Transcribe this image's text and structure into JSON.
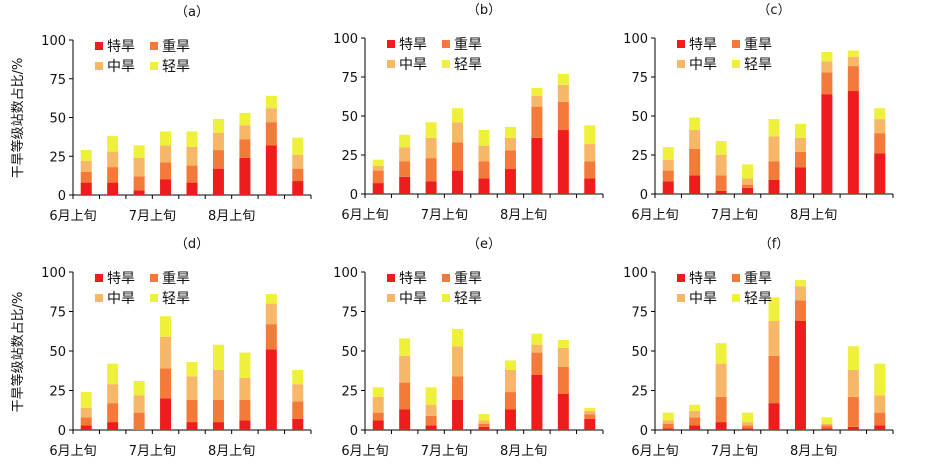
{
  "figure": {
    "ylabel": "干旱等级站数占比/%",
    "series_colors": {
      "特旱": "#ee1c1c",
      "重旱": "#f47a3a",
      "中旱": "#f7b768",
      "轻旱": "#eef03a"
    }
  },
  "chart_data": [
    {
      "panel_label": "（a）",
      "type": "bar",
      "stacked": true,
      "ylim": [
        0,
        100
      ],
      "yticks": [
        0,
        25,
        50,
        75,
        100
      ],
      "xticks": [
        "6月上旬",
        "7月上旬",
        "8月上旬"
      ],
      "categories": [
        "1",
        "2",
        "3",
        "4",
        "5",
        "6",
        "7",
        "8",
        "9"
      ],
      "series": [
        {
          "name": "特旱",
          "values": [
            8,
            8,
            3,
            10,
            8,
            17,
            24,
            32,
            9
          ]
        },
        {
          "name": "重旱",
          "values": [
            7,
            10,
            9,
            11,
            11,
            12,
            12,
            15,
            8
          ]
        },
        {
          "name": "中旱",
          "values": [
            7,
            10,
            12,
            11,
            12,
            11,
            9,
            9,
            9
          ]
        },
        {
          "name": "轻旱",
          "values": [
            7,
            10,
            8,
            9,
            10,
            9,
            8,
            8,
            11
          ]
        }
      ]
    },
    {
      "panel_label": "（b）",
      "type": "bar",
      "stacked": true,
      "ylim": [
        0,
        100
      ],
      "yticks": [
        0,
        25,
        50,
        75,
        100
      ],
      "xticks": [
        "6月上旬",
        "7月上旬",
        "8月上旬"
      ],
      "categories": [
        "1",
        "2",
        "3",
        "4",
        "5",
        "6",
        "7",
        "8",
        "9"
      ],
      "series": [
        {
          "name": "特旱",
          "values": [
            7,
            11,
            8,
            15,
            10,
            16,
            36,
            41,
            10
          ]
        },
        {
          "name": "重旱",
          "values": [
            8,
            10,
            15,
            18,
            11,
            12,
            20,
            18,
            11
          ]
        },
        {
          "name": "中旱",
          "values": [
            3,
            9,
            13,
            13,
            10,
            8,
            7,
            11,
            11
          ]
        },
        {
          "name": "轻旱",
          "values": [
            4,
            8,
            10,
            9,
            10,
            7,
            5,
            7,
            12
          ]
        }
      ]
    },
    {
      "panel_label": "（c）",
      "type": "bar",
      "stacked": true,
      "ylim": [
        0,
        100
      ],
      "yticks": [
        0,
        25,
        50,
        75,
        100
      ],
      "xticks": [
        "6月上旬",
        "7月上旬",
        "8月上旬"
      ],
      "categories": [
        "1",
        "2",
        "3",
        "4",
        "5",
        "6",
        "7",
        "8",
        "9"
      ],
      "series": [
        {
          "name": "特旱",
          "values": [
            8,
            12,
            2,
            4,
            9,
            17,
            64,
            66,
            26
          ]
        },
        {
          "name": "重旱",
          "values": [
            7,
            17,
            10,
            2,
            12,
            10,
            14,
            16,
            13
          ]
        },
        {
          "name": "中旱",
          "values": [
            7,
            12,
            13,
            4,
            16,
            9,
            7,
            6,
            9
          ]
        },
        {
          "name": "轻旱",
          "values": [
            8,
            8,
            9,
            9,
            11,
            9,
            6,
            4,
            7
          ]
        }
      ]
    },
    {
      "panel_label": "（d）",
      "type": "bar",
      "stacked": true,
      "ylim": [
        0,
        100
      ],
      "yticks": [
        0,
        25,
        50,
        75,
        100
      ],
      "xticks": [
        "6月上旬",
        "7月上旬",
        "8月上旬"
      ],
      "categories": [
        "1",
        "2",
        "3",
        "4",
        "5",
        "6",
        "7",
        "8",
        "9"
      ],
      "series": [
        {
          "name": "特旱",
          "values": [
            3,
            5,
            0,
            20,
            5,
            5,
            6,
            51,
            7
          ]
        },
        {
          "name": "重旱",
          "values": [
            5,
            12,
            11,
            19,
            14,
            14,
            13,
            16,
            11
          ]
        },
        {
          "name": "中旱",
          "values": [
            6,
            12,
            11,
            20,
            15,
            19,
            14,
            13,
            11
          ]
        },
        {
          "name": "轻旱",
          "values": [
            10,
            13,
            9,
            13,
            9,
            16,
            16,
            6,
            9
          ]
        }
      ]
    },
    {
      "panel_label": "（e）",
      "type": "bar",
      "stacked": true,
      "ylim": [
        0,
        100
      ],
      "yticks": [
        0,
        25,
        50,
        75,
        100
      ],
      "xticks": [
        "6月上旬",
        "7月上旬",
        "8月上旬"
      ],
      "categories": [
        "1",
        "2",
        "3",
        "4",
        "5",
        "6",
        "7",
        "8",
        "9"
      ],
      "series": [
        {
          "name": "特旱",
          "values": [
            6,
            13,
            3,
            19,
            2,
            13,
            35,
            23,
            7
          ]
        },
        {
          "name": "重旱",
          "values": [
            5,
            17,
            6,
            15,
            2,
            11,
            14,
            17,
            3
          ]
        },
        {
          "name": "中旱",
          "values": [
            10,
            17,
            7,
            19,
            2,
            14,
            5,
            12,
            2
          ]
        },
        {
          "name": "轻旱",
          "values": [
            6,
            11,
            11,
            11,
            4,
            6,
            7,
            5,
            2
          ]
        }
      ]
    },
    {
      "panel_label": "（f）",
      "type": "bar",
      "stacked": true,
      "ylim": [
        0,
        100
      ],
      "yticks": [
        0,
        25,
        50,
        75,
        100
      ],
      "xticks": [
        "6月上旬",
        "7月上旬",
        "8月上旬"
      ],
      "categories": [
        "1",
        "2",
        "3",
        "4",
        "5",
        "6",
        "7",
        "8",
        "9"
      ],
      "series": [
        {
          "name": "特旱",
          "values": [
            1,
            3,
            5,
            1,
            17,
            69,
            1,
            2,
            3
          ]
        },
        {
          "name": "重旱",
          "values": [
            3,
            5,
            16,
            2,
            30,
            13,
            2,
            19,
            8
          ]
        },
        {
          "name": "中旱",
          "values": [
            2,
            4,
            21,
            2,
            22,
            9,
            1,
            17,
            11
          ]
        },
        {
          "name": "轻旱",
          "values": [
            5,
            4,
            13,
            6,
            15,
            4,
            4,
            15,
            20
          ]
        }
      ]
    }
  ]
}
